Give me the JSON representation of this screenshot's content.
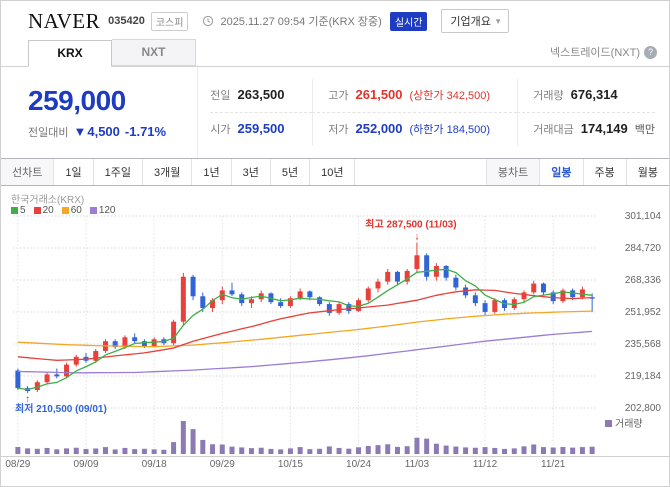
{
  "colors": {
    "up_red": "#e0342c",
    "down_blue": "#1e3cc2",
    "accent_blue": "#2b5ad0"
  },
  "header": {
    "name": "NAVER",
    "code": "035420",
    "market_badge": "코스피",
    "datetime": "2025.11.27 09:54 기준(KRX 장중)",
    "realtime_badge": "실시간",
    "company_overview_label": "기업개요",
    "company_caret": "▾"
  },
  "tabs": {
    "krx": "KRX",
    "nxt": "NXT",
    "right_label": "넥스트레이드(NXT)",
    "info_icon": "?"
  },
  "price": {
    "current": "259,000",
    "change_label": "전일대비",
    "change_arrow": "▼",
    "change_value": "4,500",
    "change_pct": "-1.71%",
    "stats": [
      {
        "label": "전일",
        "value": "263,500"
      },
      {
        "label": "고가",
        "value": "261,500",
        "extra": "(상한가 342,500)"
      },
      {
        "label": "거래량",
        "value": "676,314"
      },
      {
        "label": "시가",
        "value": "259,500"
      },
      {
        "label": "저가",
        "value": "252,000",
        "extra": "(하한가 184,500)"
      },
      {
        "label": "거래대금",
        "value": "174,149",
        "unit": "백만"
      }
    ]
  },
  "period_bar": {
    "left": [
      "선차트",
      "1일",
      "1주일",
      "3개월",
      "1년",
      "3년",
      "5년",
      "10년"
    ],
    "right": [
      "봉차트",
      "일봉",
      "주봉",
      "월봉"
    ],
    "active": "일봉"
  },
  "chart_data": {
    "type": "candlestick",
    "exchange_label": "한국거래소(KRX)",
    "volume_label": "거래량",
    "legend": [
      {
        "label": "5",
        "color": "#3fae49"
      },
      {
        "label": "20",
        "color": "#e8403a"
      },
      {
        "label": "60",
        "color": "#f5a623"
      },
      {
        "label": "120",
        "color": "#9b7dd4"
      }
    ],
    "colors": {
      "up": "#e8403a",
      "down": "#3064d8",
      "volume": "#8d7ab5"
    },
    "y_min": 202.8,
    "y_max": 301.104,
    "y_ticks": [
      {
        "v": 301.104,
        "label": "301,104"
      },
      {
        "v": 284.72,
        "label": "284,720"
      },
      {
        "v": 268.336,
        "label": "268,336"
      },
      {
        "v": 251.952,
        "label": "251,952"
      },
      {
        "v": 235.568,
        "label": "235,568"
      },
      {
        "v": 219.184,
        "label": "219,184"
      },
      {
        "v": 202.8,
        "label": "202,800"
      }
    ],
    "x_ticks": [
      {
        "i": 0,
        "label": "08/29"
      },
      {
        "i": 7,
        "label": "09/09"
      },
      {
        "i": 14,
        "label": "09/18"
      },
      {
        "i": 21,
        "label": "09/29"
      },
      {
        "i": 28,
        "label": "10/15"
      },
      {
        "i": 35,
        "label": "10/24"
      },
      {
        "i": 41,
        "label": "11/03"
      },
      {
        "i": 48,
        "label": "11/12"
      },
      {
        "i": 55,
        "label": "11/21"
      }
    ],
    "candles": [
      [
        222,
        223,
        212,
        213
      ],
      [
        213,
        214,
        210.5,
        211.5
      ],
      [
        212,
        217,
        211,
        216
      ],
      [
        216,
        221,
        215,
        220
      ],
      [
        220,
        223,
        218,
        219
      ],
      [
        219,
        226,
        218.5,
        225
      ],
      [
        225,
        230,
        224,
        229
      ],
      [
        229,
        231,
        226,
        227
      ],
      [
        227,
        233,
        226,
        232
      ],
      [
        232,
        238,
        231,
        237
      ],
      [
        237,
        238,
        233,
        234
      ],
      [
        234,
        240,
        233,
        239
      ],
      [
        239,
        241,
        236,
        237
      ],
      [
        237,
        238,
        233.5,
        234.5
      ],
      [
        234.5,
        239,
        234,
        238
      ],
      [
        238,
        239,
        235,
        236
      ],
      [
        236,
        248,
        235,
        247
      ],
      [
        247,
        272,
        245,
        270
      ],
      [
        270,
        271,
        258,
        260
      ],
      [
        260,
        262,
        252,
        254
      ],
      [
        254,
        259,
        252,
        258
      ],
      [
        258,
        265,
        256,
        263
      ],
      [
        263,
        267,
        260,
        261
      ],
      [
        261,
        262,
        255,
        256.5
      ],
      [
        256.5,
        260,
        254,
        258.5
      ],
      [
        258.5,
        263,
        257,
        261.5
      ],
      [
        261.5,
        262,
        256,
        257
      ],
      [
        257,
        259,
        254,
        255
      ],
      [
        255,
        260,
        254,
        259
      ],
      [
        259,
        264,
        258,
        262.5
      ],
      [
        262.5,
        263,
        258,
        259.5
      ],
      [
        259.5,
        260,
        255,
        256
      ],
      [
        256,
        257,
        250,
        251.5
      ],
      [
        251.5,
        257,
        250.5,
        256
      ],
      [
        256,
        257,
        251,
        252.5
      ],
      [
        252.5,
        259,
        252,
        258
      ],
      [
        258,
        265,
        257,
        264
      ],
      [
        264,
        269,
        262,
        267.5
      ],
      [
        267.5,
        274,
        266,
        272.5
      ],
      [
        272.5,
        273,
        266,
        267.5
      ],
      [
        267.5,
        274,
        266,
        273
      ],
      [
        274,
        287.5,
        272,
        281
      ],
      [
        281,
        282,
        268,
        270
      ],
      [
        270,
        277,
        268,
        275.5
      ],
      [
        275.5,
        276,
        268,
        269.5
      ],
      [
        269.5,
        271,
        263,
        264.5
      ],
      [
        264.5,
        266,
        259,
        260.5
      ],
      [
        260.5,
        262,
        255,
        256.5
      ],
      [
        256.5,
        258,
        250,
        252
      ],
      [
        252,
        259,
        251,
        258
      ],
      [
        258,
        259,
        252.5,
        254
      ],
      [
        254,
        259.5,
        253,
        258.5
      ],
      [
        258.5,
        263,
        257,
        262
      ],
      [
        262,
        268,
        261,
        266.5
      ],
      [
        266.5,
        267,
        260.5,
        262
      ],
      [
        262,
        263,
        256,
        257.5
      ],
      [
        257.5,
        264,
        256.5,
        263
      ],
      [
        263,
        264,
        258,
        259.5
      ],
      [
        259.5,
        265,
        258.5,
        263.5
      ],
      [
        259.5,
        261.5,
        252,
        259
      ]
    ],
    "volumes": [
      650,
      520,
      480,
      560,
      430,
      520,
      580,
      460,
      510,
      640,
      420,
      560,
      450,
      480,
      430,
      390,
      1100,
      3050,
      2300,
      1300,
      900,
      880,
      680,
      610,
      540,
      580,
      470,
      430,
      520,
      640,
      450,
      480,
      700,
      560,
      490,
      620,
      740,
      820,
      900,
      660,
      720,
      1500,
      1420,
      950,
      780,
      690,
      610,
      580,
      640,
      560,
      470,
      520,
      710,
      880,
      640,
      600,
      650,
      590,
      640,
      676
    ],
    "ma20_points": [
      [
        0,
        229
      ],
      [
        4,
        227.2
      ],
      [
        7,
        227.8
      ],
      [
        10,
        229.5
      ],
      [
        13,
        231
      ],
      [
        16,
        233.5
      ],
      [
        18,
        237
      ],
      [
        21,
        241
      ],
      [
        24,
        244.5
      ],
      [
        27,
        248.5
      ],
      [
        30,
        251.5
      ],
      [
        33,
        253.2
      ],
      [
        35,
        254
      ],
      [
        38,
        255.5
      ],
      [
        41,
        258
      ],
      [
        43,
        260.5
      ],
      [
        45,
        262.3
      ],
      [
        47,
        263.3
      ],
      [
        49,
        263
      ],
      [
        51,
        261.5
      ],
      [
        53,
        260.3
      ],
      [
        55,
        259.3
      ],
      [
        57,
        258.8
      ],
      [
        59,
        259.3
      ]
    ],
    "ma60_points": [
      [
        0,
        236.5
      ],
      [
        5,
        235.2
      ],
      [
        9,
        234.6
      ],
      [
        14,
        234.2
      ],
      [
        18,
        235
      ],
      [
        21,
        236.2
      ],
      [
        25,
        238
      ],
      [
        28,
        239.5
      ],
      [
        31,
        241
      ],
      [
        35,
        243
      ],
      [
        38,
        244.8
      ],
      [
        41,
        246.8
      ],
      [
        44,
        248.4
      ],
      [
        47,
        249.8
      ],
      [
        50,
        250.8
      ],
      [
        53,
        251.5
      ],
      [
        56,
        252
      ],
      [
        59,
        252.4
      ]
    ],
    "ma120_points": [
      [
        0,
        221.5
      ],
      [
        6,
        220.8
      ],
      [
        12,
        221
      ],
      [
        18,
        222.2
      ],
      [
        24,
        224
      ],
      [
        30,
        226.5
      ],
      [
        35,
        229
      ],
      [
        40,
        232
      ],
      [
        44,
        234.5
      ],
      [
        48,
        237
      ],
      [
        52,
        239
      ],
      [
        55,
        240.5
      ],
      [
        59,
        242
      ]
    ],
    "annotations": {
      "high": {
        "label": "최고 287,500 (11/03)",
        "index": 41,
        "value": 287.5
      },
      "low": {
        "label": "최저 210,500 (09/01)",
        "index": 1,
        "value": 210.5
      }
    }
  }
}
